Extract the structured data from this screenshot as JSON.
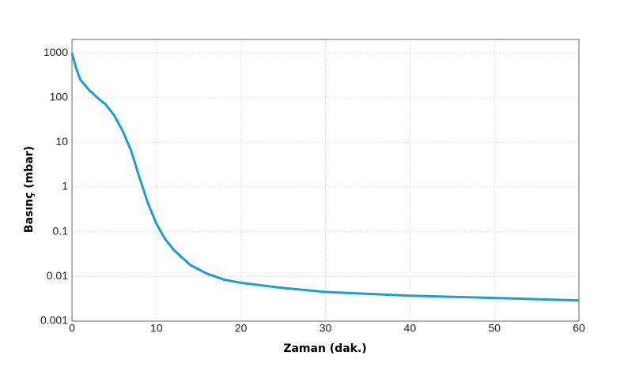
{
  "chart_data": {
    "type": "line",
    "x_label": "Zaman (dak.)",
    "y_label": "Basınç (mbar)",
    "x": [
      0,
      0.5,
      1,
      2,
      3,
      4,
      5,
      6,
      7,
      8,
      9,
      10,
      11,
      12,
      14,
      16,
      18,
      20,
      25,
      30,
      40,
      50,
      60
    ],
    "series": [
      {
        "name": "Basınç",
        "color": "#1a9fd2",
        "values": [
          1000,
          450,
          250,
          150,
          100,
          70,
          40,
          18,
          6.5,
          1.6,
          0.43,
          0.15,
          0.07,
          0.04,
          0.018,
          0.0115,
          0.0085,
          0.0072,
          0.0055,
          0.0045,
          0.0037,
          0.0033,
          0.0029
        ]
      }
    ],
    "xlim": [
      0,
      60
    ],
    "xticks": [
      0,
      10,
      20,
      30,
      40,
      50,
      60
    ],
    "ylim": [
      0.001,
      2000
    ],
    "yticks": [
      1000,
      100,
      10,
      1,
      0.1,
      0.01,
      0.001
    ],
    "ylog": true,
    "grid": true
  }
}
